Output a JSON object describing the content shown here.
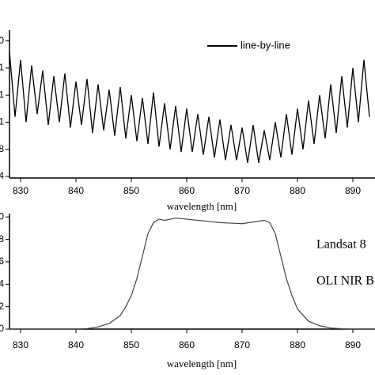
{
  "chart_data": [
    {
      "type": "line",
      "x": [
        828,
        829,
        830,
        831,
        832,
        833,
        834,
        835,
        836,
        837,
        838,
        839,
        840,
        841,
        842,
        843,
        844,
        845,
        846,
        847,
        848,
        849,
        850,
        851,
        852,
        853,
        854,
        855,
        856,
        857,
        858,
        859,
        860,
        861,
        862,
        863,
        864,
        865,
        866,
        867,
        868,
        869,
        870,
        871,
        872,
        873,
        874,
        875,
        876,
        877,
        878,
        879,
        880,
        881,
        882,
        883,
        884,
        885,
        886,
        887,
        888,
        889,
        890,
        891,
        892,
        893
      ],
      "series": [
        {
          "name": "line-by-line",
          "color": "#000000",
          "values": [
            4.6,
            2.2,
            4.3,
            2.0,
            4.1,
            2.3,
            3.9,
            1.9,
            3.7,
            2.0,
            3.8,
            1.8,
            3.5,
            1.9,
            3.6,
            1.6,
            3.4,
            1.7,
            3.2,
            1.5,
            3.3,
            1.4,
            3.0,
            1.3,
            2.9,
            1.2,
            3.1,
            1.1,
            2.7,
            1.0,
            2.6,
            0.9,
            2.5,
            0.9,
            2.3,
            0.8,
            2.2,
            0.7,
            2.1,
            0.6,
            1.9,
            0.6,
            1.8,
            0.5,
            1.9,
            0.5,
            1.7,
            0.6,
            2.0,
            0.7,
            2.3,
            0.8,
            2.5,
            1.0,
            2.8,
            1.2,
            3.0,
            1.4,
            3.4,
            1.6,
            3.7,
            1.8,
            4.0,
            2.0,
            4.3,
            2.2
          ]
        }
      ],
      "xlim": [
        828,
        894
      ],
      "xticks": [
        830,
        840,
        850,
        860,
        870,
        880,
        890
      ],
      "ylim": [
        0,
        5.4
      ],
      "yticks": [
        {
          "value": 0,
          "label": "4"
        },
        {
          "value": 1,
          "label": "8"
        },
        {
          "value": 2,
          "label": "1"
        },
        {
          "value": 3,
          "label": "1"
        },
        {
          "value": 4,
          "label": "1"
        },
        {
          "value": 5,
          "label": "0"
        }
      ],
      "x_label": "wavelength [nm]",
      "legend": "upper right"
    },
    {
      "type": "line",
      "x": [
        828,
        840,
        842,
        844,
        846,
        848,
        849,
        850,
        851,
        852,
        853,
        854,
        855,
        856,
        858,
        860,
        862,
        864,
        866,
        868,
        870,
        872,
        874,
        875,
        876,
        877,
        878,
        879,
        880,
        882,
        884,
        886,
        888,
        890,
        894
      ],
      "values": [
        0,
        0,
        0.005,
        0.02,
        0.05,
        0.12,
        0.2,
        0.3,
        0.45,
        0.65,
        0.85,
        0.95,
        0.98,
        0.97,
        0.99,
        0.98,
        0.97,
        0.96,
        0.95,
        0.945,
        0.94,
        0.955,
        0.97,
        0.95,
        0.85,
        0.65,
        0.45,
        0.3,
        0.18,
        0.07,
        0.03,
        0.01,
        0.003,
        0,
        0
      ],
      "color": "#444444",
      "xlim": [
        828,
        894
      ],
      "xticks": [
        830,
        840,
        850,
        860,
        870,
        880,
        890
      ],
      "ylim": [
        0,
        1.03
      ],
      "yticks": [
        0,
        {
          "value": 0.2,
          "label": "2"
        },
        {
          "value": 0.4,
          "label": "4"
        },
        {
          "value": 0.6,
          "label": "6"
        },
        {
          "value": 0.8,
          "label": "8"
        },
        {
          "value": 1.0,
          "label": "0"
        }
      ],
      "x_label": "wavelength [nm]",
      "annotations": [
        "Landsat 8",
        "OLI NIR B"
      ]
    }
  ]
}
